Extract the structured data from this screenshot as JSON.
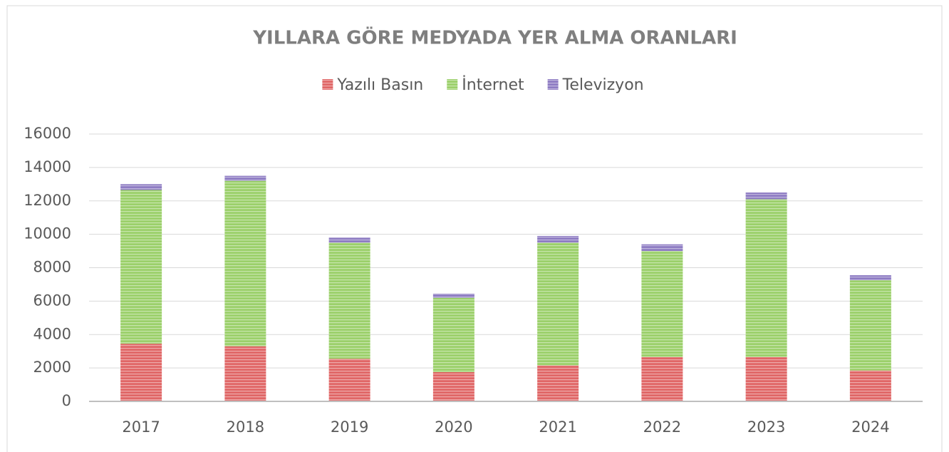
{
  "chart_data": {
    "type": "stacked_bar",
    "title": "YILLARA GÖRE MEDYADA YER ALMA ORANLARI",
    "categories": [
      "2017",
      "2018",
      "2019",
      "2020",
      "2021",
      "2022",
      "2023",
      "2024"
    ],
    "series": [
      {
        "name": "Yazılı Basın",
        "color": "#e06666",
        "values": [
          3450,
          3300,
          2550,
          1750,
          2150,
          2650,
          2650,
          1850
        ]
      },
      {
        "name": "İnternet",
        "color": "#9bd06a",
        "values": [
          9200,
          9900,
          6950,
          4450,
          7350,
          6350,
          9450,
          5400
        ]
      },
      {
        "name": "Televizyon",
        "color": "#8e7cc3",
        "values": [
          350,
          300,
          300,
          250,
          400,
          400,
          400,
          300
        ]
      }
    ],
    "ylim": [
      0,
      16000
    ],
    "yticks": [
      0,
      2000,
      4000,
      6000,
      8000,
      10000,
      12000,
      14000,
      16000
    ],
    "grid": true,
    "legend": "top"
  }
}
